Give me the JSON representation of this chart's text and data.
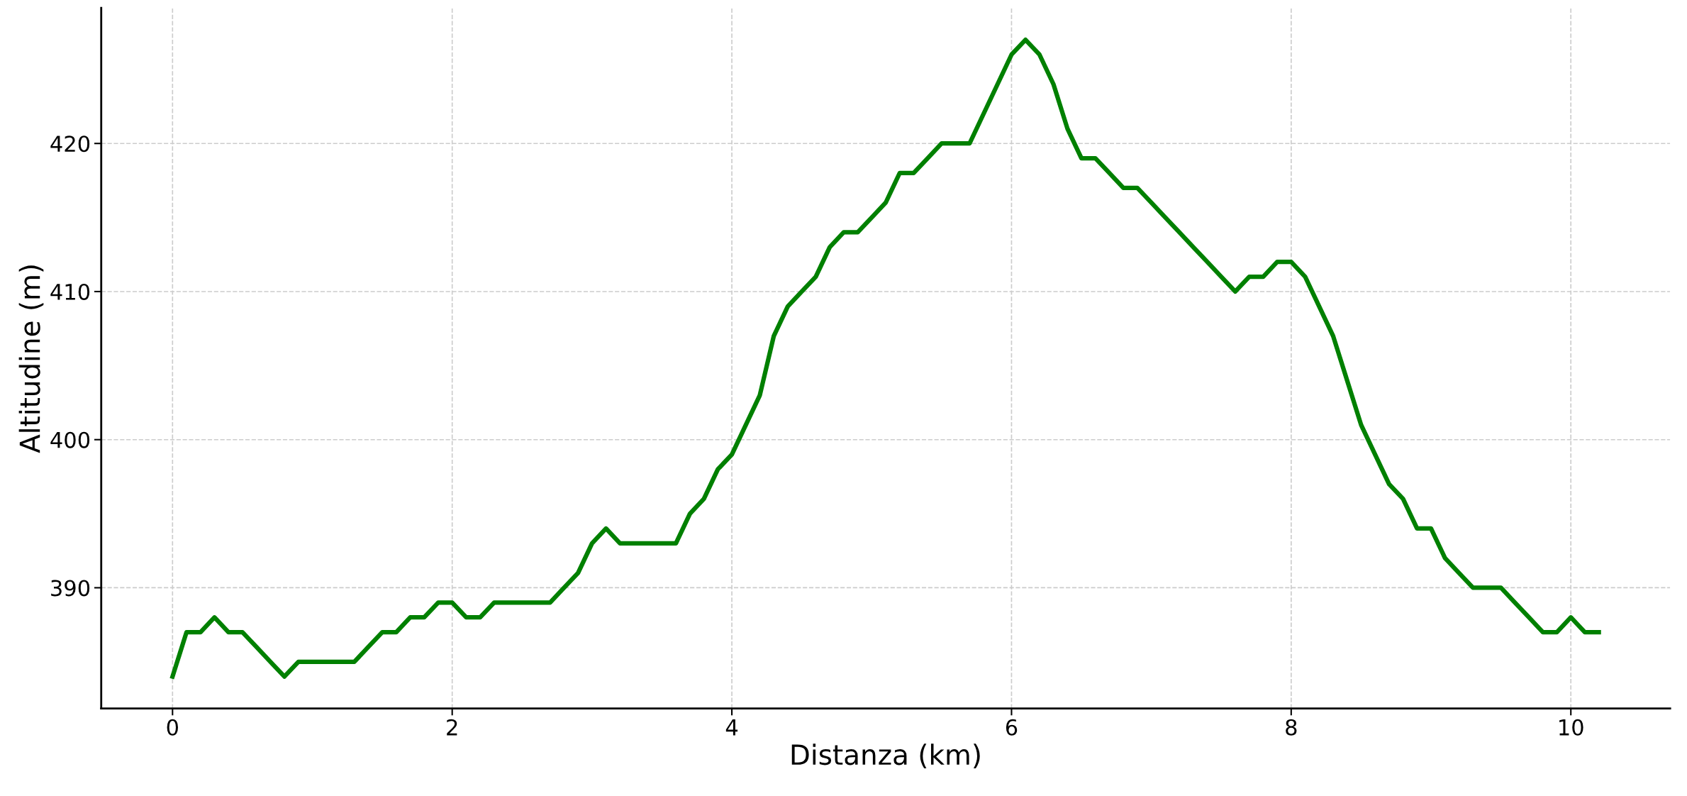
{
  "chart_data": {
    "type": "line",
    "xlabel": "Distanza (km)",
    "ylabel": "Altitudine (m)",
    "x": [
      0,
      0.1,
      0.2,
      0.3,
      0.4,
      0.5,
      0.6,
      0.7,
      0.8,
      0.9,
      1.0,
      1.1,
      1.2,
      1.3,
      1.4,
      1.5,
      1.6,
      1.7,
      1.8,
      1.9,
      2.0,
      2.1,
      2.2,
      2.3,
      2.4,
      2.5,
      2.6,
      2.7,
      2.8,
      2.9,
      3.0,
      3.1,
      3.2,
      3.3,
      3.4,
      3.5,
      3.6,
      3.7,
      3.8,
      3.9,
      4.0,
      4.1,
      4.2,
      4.3,
      4.4,
      4.5,
      4.6,
      4.7,
      4.8,
      4.9,
      5.0,
      5.1,
      5.2,
      5.3,
      5.4,
      5.5,
      5.6,
      5.7,
      5.8,
      5.9,
      6.0,
      6.1,
      6.2,
      6.3,
      6.4,
      6.5,
      6.6,
      6.7,
      6.8,
      6.9,
      7.0,
      7.1,
      7.2,
      7.3,
      7.4,
      7.5,
      7.6,
      7.7,
      7.8,
      7.9,
      8.0,
      8.1,
      8.2,
      8.3,
      8.4,
      8.5,
      8.6,
      8.7,
      8.8,
      8.9,
      9.0,
      9.1,
      9.2,
      9.3,
      9.4,
      9.5,
      9.6,
      9.7,
      9.8,
      9.9,
      10.0,
      10.1,
      10.2
    ],
    "series": [
      {
        "color": "#008000",
        "values": [
          384,
          387,
          387,
          388,
          387,
          387,
          386,
          385,
          384,
          385,
          385,
          385,
          385,
          385,
          386,
          387,
          387,
          388,
          388,
          389,
          389,
          388,
          388,
          389,
          389,
          389,
          389,
          389,
          390,
          391,
          393,
          394,
          393,
          393,
          393,
          393,
          393,
          395,
          396,
          398,
          399,
          401,
          403,
          407,
          409,
          410,
          411,
          413,
          414,
          414,
          415,
          416,
          418,
          418,
          419,
          420,
          420,
          420,
          422,
          424,
          426,
          427,
          426,
          424,
          421,
          419,
          419,
          418,
          417,
          417,
          416,
          415,
          414,
          413,
          412,
          411,
          410,
          411,
          411,
          412,
          412,
          411,
          409,
          407,
          404,
          401,
          399,
          397,
          396,
          394,
          394,
          392,
          391,
          390,
          390,
          390,
          389,
          388,
          387,
          387,
          388,
          387,
          387
        ]
      }
    ],
    "xlim": [
      -0.51,
      10.71
    ],
    "ylim": [
      381.85,
      429.15
    ],
    "xticks": [
      0,
      2,
      4,
      6,
      8,
      10
    ],
    "yticks": [
      390,
      400,
      410,
      420
    ],
    "grid": true,
    "line_style": "solid",
    "marker": "none"
  }
}
